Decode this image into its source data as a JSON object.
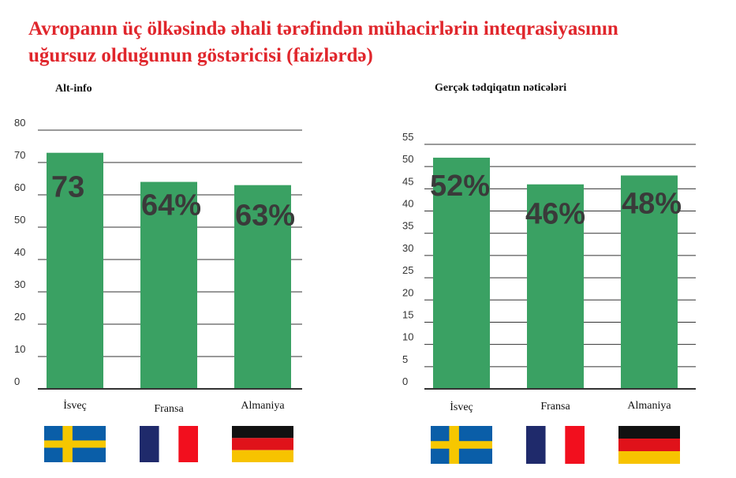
{
  "title_line1": "Avropanın üç ölkəsində əhali tərəfindən mühacirlərin inteqrasiyasının",
  "title_line2": "uğursuz olduğunun göstəricisi (faizlərdə)",
  "colors": {
    "bar": "#3aa163",
    "title": "#e0262c",
    "grid": "#333333"
  },
  "flag_icons": [
    "sweden-flag-icon",
    "france-flag-icon",
    "germany-flag-icon"
  ],
  "chart_data": [
    {
      "type": "bar",
      "title": "Alt-info",
      "categories": [
        "İsveç",
        "Fransa",
        "Almaniya"
      ],
      "values": [
        73,
        64,
        63
      ],
      "data_labels": [
        "73",
        "64%",
        "63%"
      ],
      "yticks": [
        0,
        10,
        20,
        30,
        40,
        50,
        60,
        70,
        80
      ],
      "ylim": [
        0,
        80
      ],
      "grid": true
    },
    {
      "type": "bar",
      "title": "Gerçək tədqiqatın nəticələri",
      "categories": [
        "İsveç",
        "Fransa",
        "Almaniya"
      ],
      "values": [
        52,
        46,
        48
      ],
      "data_labels": [
        "52%",
        "46%",
        "48%"
      ],
      "yticks": [
        0,
        5,
        10,
        15,
        20,
        25,
        30,
        35,
        40,
        45,
        50,
        55
      ],
      "ylim": [
        0,
        55
      ],
      "grid": true
    }
  ]
}
